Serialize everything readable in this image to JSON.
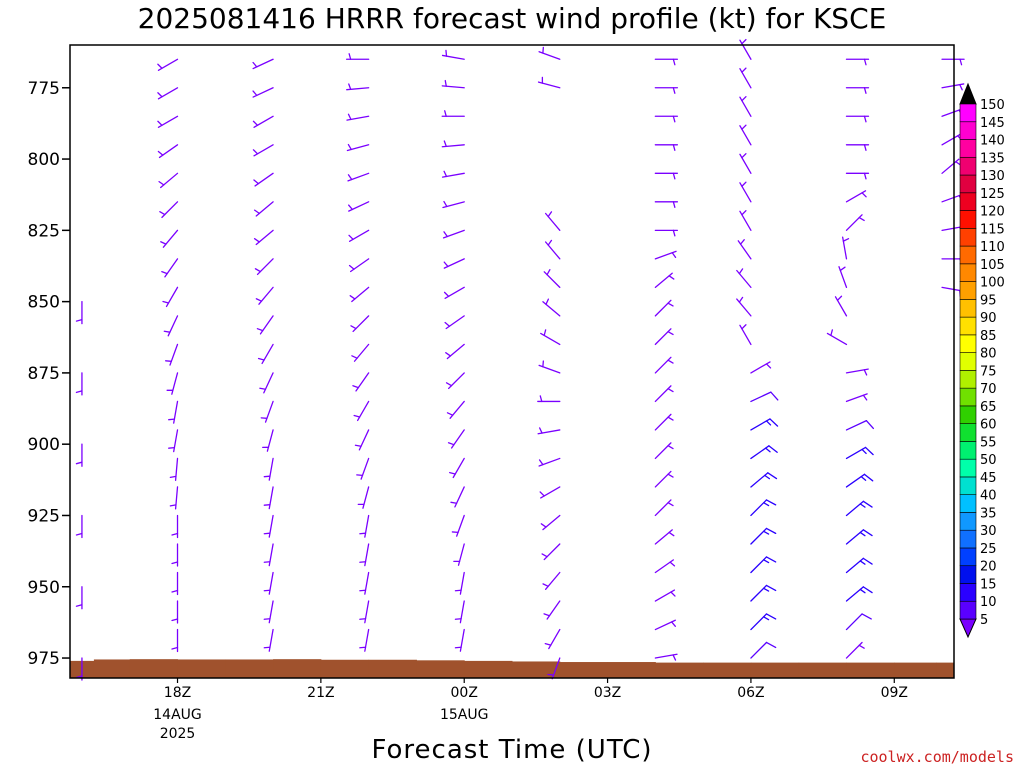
{
  "chart_data": {
    "type": "wind-barb-profile",
    "title": "2025081416 HRRR forecast wind profile (kt) for KSCE",
    "xlabel": "Forecast Time (UTC)",
    "ylabel": "",
    "y_ticks": [
      "775",
      "800",
      "825",
      "850",
      "875",
      "900",
      "925",
      "950",
      "975"
    ],
    "y_range_hPa": [
      760,
      982
    ],
    "x_range_hours": [
      15.75,
      34.25
    ],
    "x_ticks": [
      {
        "label": "18Z",
        "sub1": "14AUG",
        "sub2": "2025"
      },
      {
        "label": "21Z",
        "sub1": "",
        "sub2": ""
      },
      {
        "label": "00Z",
        "sub1": "15AUG",
        "sub2": ""
      },
      {
        "label": "03Z",
        "sub1": "",
        "sub2": ""
      },
      {
        "label": "06Z",
        "sub1": "",
        "sub2": ""
      },
      {
        "label": "09Z",
        "sub1": "",
        "sub2": ""
      }
    ],
    "colorbar": {
      "units": "kt",
      "levels": [
        5,
        10,
        15,
        20,
        25,
        30,
        35,
        40,
        45,
        50,
        55,
        60,
        65,
        70,
        75,
        80,
        85,
        90,
        95,
        100,
        105,
        110,
        115,
        120,
        125,
        130,
        135,
        140,
        145,
        150
      ],
      "colors": [
        "#7a00ff",
        "#5a00ff",
        "#2a00ff",
        "#0010ee",
        "#0040ff",
        "#1070ff",
        "#1098ff",
        "#00c0ff",
        "#00e0d0",
        "#00ffaa",
        "#00f070",
        "#10e030",
        "#30d000",
        "#70e000",
        "#b0f000",
        "#e0ff00",
        "#ffff00",
        "#ffe000",
        "#ffc000",
        "#ffa000",
        "#ff8800",
        "#ff6a00",
        "#ff4000",
        "#ff1000",
        "#ee0020",
        "#e00040",
        "#f00070",
        "#ff00a0",
        "#ff00d0",
        "#ff00ff"
      ]
    },
    "wind_barbs": [
      {
        "hour": 16,
        "pressures": [
          850,
          875,
          900,
          925,
          950,
          975
        ],
        "dir_deg": [
          180,
          180,
          180,
          180,
          180,
          180
        ],
        "speed_kt": [
          5,
          5,
          5,
          5,
          5,
          5
        ]
      },
      {
        "hour": 18,
        "pressures": [
          765,
          775,
          785,
          795,
          805,
          815,
          825,
          835,
          845,
          855,
          865,
          875,
          885,
          895,
          905,
          915,
          925,
          935,
          945,
          955,
          965
        ],
        "dir_deg": [
          240,
          240,
          240,
          235,
          230,
          225,
          220,
          215,
          210,
          205,
          200,
          195,
          190,
          190,
          185,
          185,
          180,
          180,
          180,
          180,
          180
        ],
        "speed_kt": [
          5,
          5,
          5,
          5,
          5,
          5,
          5,
          5,
          5,
          5,
          5,
          5,
          5,
          5,
          5,
          5,
          5,
          5,
          5,
          5,
          5
        ]
      },
      {
        "hour": 20,
        "pressures": [
          765,
          775,
          785,
          795,
          805,
          815,
          825,
          835,
          845,
          855,
          865,
          875,
          885,
          895,
          905,
          915,
          925,
          935,
          945,
          955,
          965
        ],
        "dir_deg": [
          245,
          245,
          240,
          240,
          235,
          230,
          230,
          225,
          220,
          215,
          210,
          205,
          200,
          195,
          190,
          190,
          190,
          190,
          190,
          190,
          190
        ],
        "speed_kt": [
          5,
          5,
          5,
          5,
          5,
          5,
          5,
          5,
          5,
          5,
          5,
          5,
          5,
          5,
          5,
          5,
          5,
          5,
          5,
          5,
          5
        ]
      },
      {
        "hour": 22,
        "pressures": [
          765,
          775,
          785,
          795,
          805,
          815,
          825,
          835,
          845,
          855,
          865,
          875,
          885,
          895,
          905,
          915,
          925,
          935,
          945,
          955,
          965
        ],
        "dir_deg": [
          270,
          265,
          260,
          255,
          250,
          245,
          240,
          235,
          230,
          225,
          220,
          215,
          210,
          205,
          200,
          195,
          190,
          190,
          190,
          190,
          190
        ],
        "speed_kt": [
          5,
          5,
          5,
          5,
          5,
          5,
          5,
          5,
          5,
          5,
          5,
          5,
          5,
          5,
          5,
          5,
          5,
          5,
          5,
          5,
          5
        ]
      },
      {
        "hour": 24,
        "pressures": [
          765,
          775,
          785,
          795,
          805,
          815,
          825,
          835,
          845,
          855,
          865,
          875,
          885,
          895,
          905,
          915,
          925,
          935,
          945,
          955,
          965
        ],
        "dir_deg": [
          280,
          275,
          270,
          265,
          260,
          255,
          250,
          245,
          240,
          235,
          230,
          225,
          220,
          215,
          210,
          205,
          200,
          195,
          190,
          190,
          190
        ],
        "speed_kt": [
          5,
          5,
          5,
          5,
          5,
          5,
          5,
          5,
          5,
          5,
          5,
          5,
          5,
          5,
          5,
          5,
          5,
          5,
          5,
          5,
          5
        ]
      },
      {
        "hour": 26,
        "pressures": [
          765,
          775,
          825,
          835,
          845,
          855,
          865,
          875,
          885,
          895,
          905,
          915,
          925,
          935,
          945,
          955,
          965,
          975
        ],
        "dir_deg": [
          290,
          285,
          320,
          320,
          315,
          310,
          300,
          290,
          270,
          260,
          250,
          240,
          230,
          225,
          220,
          215,
          210,
          200
        ],
        "speed_kt": [
          5,
          5,
          5,
          5,
          5,
          5,
          5,
          5,
          5,
          5,
          5,
          5,
          5,
          5,
          5,
          5,
          5,
          5
        ]
      },
      {
        "hour": 28,
        "pressures": [
          765,
          775,
          785,
          795,
          805,
          815,
          825,
          835,
          845,
          855,
          865,
          875,
          885,
          895,
          905,
          915,
          925,
          935,
          945,
          955,
          965,
          975
        ],
        "dir_deg": [
          90,
          90,
          90,
          90,
          90,
          90,
          90,
          70,
          50,
          45,
          45,
          45,
          45,
          45,
          45,
          45,
          45,
          50,
          55,
          60,
          65,
          80
        ],
        "speed_kt": [
          5,
          5,
          5,
          5,
          5,
          5,
          5,
          5,
          5,
          5,
          5,
          5,
          5,
          5,
          5,
          5,
          5,
          5,
          5,
          5,
          5,
          5
        ]
      },
      {
        "hour": 30,
        "pressures": [
          765,
          775,
          785,
          795,
          805,
          815,
          825,
          835,
          845,
          855,
          865,
          875,
          885,
          895,
          905,
          915,
          925,
          935,
          945,
          955,
          965,
          975
        ],
        "dir_deg": [
          330,
          330,
          330,
          330,
          330,
          330,
          330,
          325,
          320,
          320,
          330,
          60,
          65,
          60,
          55,
          50,
          45,
          45,
          45,
          45,
          45,
          45
        ],
        "speed_kt": [
          5,
          5,
          5,
          5,
          5,
          5,
          5,
          5,
          5,
          5,
          5,
          5,
          10,
          15,
          15,
          15,
          15,
          15,
          15,
          15,
          15,
          10
        ]
      },
      {
        "hour": 32,
        "pressures": [
          765,
          775,
          785,
          795,
          805,
          815,
          825,
          835,
          845,
          855,
          865,
          875,
          885,
          895,
          905,
          915,
          925,
          935,
          945,
          955,
          965,
          975
        ],
        "dir_deg": [
          90,
          90,
          90,
          90,
          90,
          60,
          45,
          350,
          340,
          330,
          300,
          80,
          70,
          65,
          60,
          55,
          50,
          50,
          50,
          50,
          45,
          45
        ],
        "speed_kt": [
          5,
          5,
          5,
          5,
          5,
          5,
          5,
          5,
          5,
          5,
          5,
          5,
          5,
          10,
          15,
          15,
          15,
          15,
          15,
          15,
          10,
          5
        ]
      },
      {
        "hour": 34,
        "pressures": [
          765,
          775,
          785,
          795,
          805,
          815,
          825,
          835,
          845
        ],
        "dir_deg": [
          90,
          80,
          70,
          60,
          50,
          70,
          80,
          90,
          100
        ],
        "speed_kt": [
          5,
          5,
          5,
          5,
          5,
          5,
          5,
          5,
          5
        ]
      }
    ],
    "terrain": {
      "color": "#a0522d",
      "surface_pressure_hPa": [
        976,
        975.5,
        975.4,
        975.5,
        975.5,
        975.4,
        975.6,
        975.6,
        975.8,
        976,
        976.2,
        976.4,
        976.4,
        976.6,
        976.6,
        976.6,
        976.6,
        976.6,
        976.6,
        976.6
      ],
      "hours": [
        16,
        16.5,
        17.5,
        18.5,
        19.5,
        20.5,
        21.5,
        22.5,
        23.5,
        24.5,
        25.5,
        26.5,
        27.5,
        28.5,
        29.5,
        30.5,
        31.5,
        32.5,
        33.5,
        34.25
      ]
    },
    "credit": "coolwx.com/models"
  }
}
